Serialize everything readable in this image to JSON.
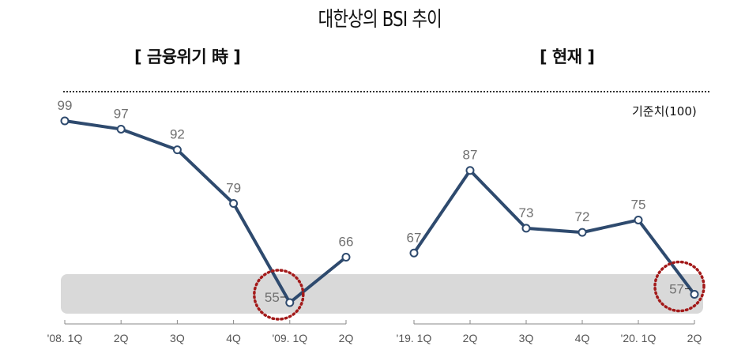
{
  "title": "대한상의 BSI 추이",
  "reference_label": "기준치(100)",
  "panels": [
    {
      "subtitle": "[ 금융위기 時 ]"
    },
    {
      "subtitle": "[ 현재 ]"
    }
  ],
  "colors": {
    "line": "#2e4a6e",
    "highlight_band": "#d9d9d9",
    "circle_marker": "#a31a1a",
    "label_text": "#707070"
  },
  "chart_data": [
    {
      "type": "line",
      "title": "[ 금융위기 時 ]",
      "categories": [
        "'08. 1Q",
        "2Q",
        "3Q",
        "4Q",
        "'09. 1Q",
        "2Q"
      ],
      "values": [
        99,
        97,
        92,
        79,
        55,
        66
      ],
      "reference_line": 100,
      "highlighted_min": {
        "category": "'09. 1Q",
        "value": 55
      },
      "xlabel": "",
      "ylabel": "",
      "grid": false
    },
    {
      "type": "line",
      "title": "[ 현재 ]",
      "categories": [
        "'19. 1Q",
        "2Q",
        "3Q",
        "4Q",
        "'20. 1Q",
        "2Q"
      ],
      "values": [
        67,
        87,
        73,
        72,
        75,
        57
      ],
      "reference_line": 100,
      "highlighted_min": {
        "category": "2Q",
        "value": 57
      },
      "xlabel": "",
      "ylabel": "",
      "grid": false
    }
  ]
}
